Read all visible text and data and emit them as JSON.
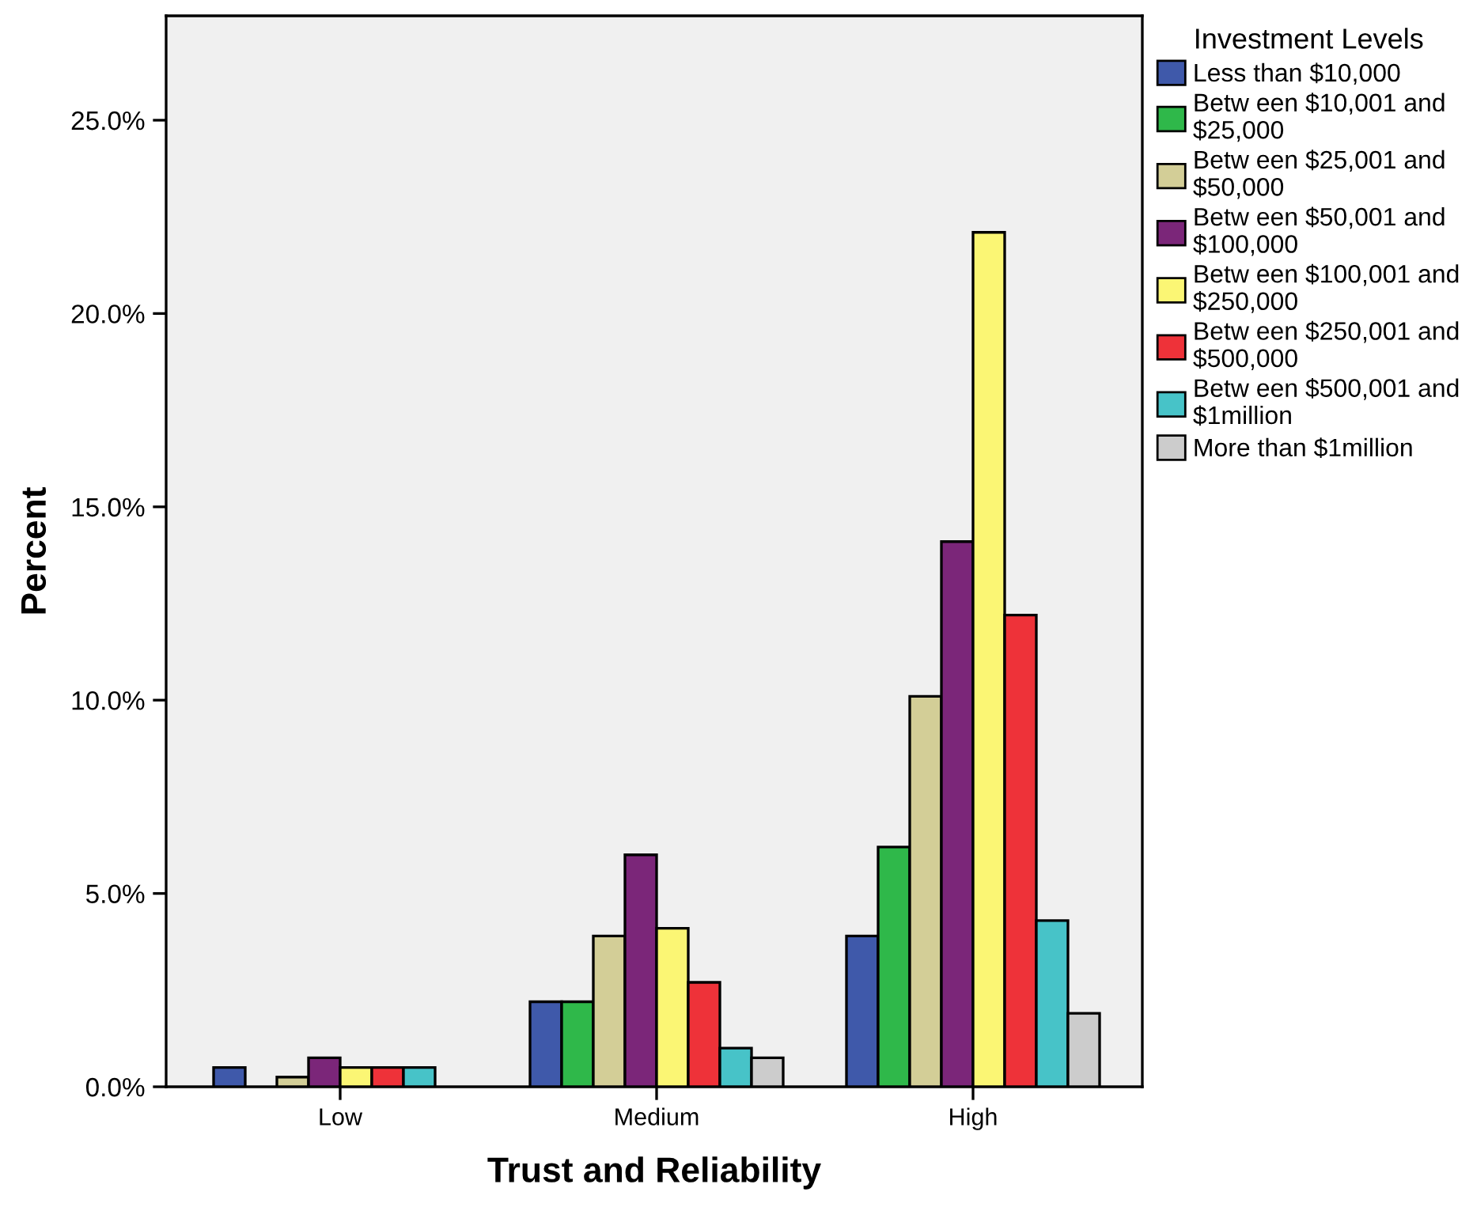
{
  "chart_data": {
    "type": "bar",
    "xlabel": "Trust and Reliability",
    "ylabel": "Percent",
    "legend_title": "Investment Levels",
    "categories": [
      "Low",
      "Medium",
      "High"
    ],
    "series": [
      {
        "name": "Less than $10,000",
        "color": "#3f59aa",
        "values": [
          0.5,
          2.2,
          3.9
        ]
      },
      {
        "name": "Betw een $10,001 and\n$25,000",
        "color": "#2fb84a",
        "values": [
          null,
          2.2,
          6.2
        ]
      },
      {
        "name": "Betw een $25,001 and\n$50,000",
        "color": "#d3ce97",
        "values": [
          0.25,
          3.9,
          10.1
        ]
      },
      {
        "name": "Betw een $50,001 and\n$100,000",
        "color": "#7b2679",
        "values": [
          0.75,
          6.0,
          14.1
        ]
      },
      {
        "name": "Betw een $100,001 and\n$250,000",
        "color": "#fbf674",
        "values": [
          0.5,
          4.1,
          22.1
        ]
      },
      {
        "name": "Betw een $250,001 and\n$500,000",
        "color": "#ee3239",
        "values": [
          0.5,
          2.7,
          12.2
        ]
      },
      {
        "name": "Betw een $500,001 and\n$1million",
        "color": "#47c3c8",
        "values": [
          0.5,
          1.0,
          4.3
        ]
      },
      {
        "name": "More than $1million",
        "color": "#cccccc",
        "values": [
          null,
          0.75,
          1.9
        ]
      }
    ],
    "ylim": [
      0,
      27.7
    ],
    "yticks": [
      {
        "value": 0,
        "label": "0.0%"
      },
      {
        "value": 5,
        "label": "5.0%"
      },
      {
        "value": 10,
        "label": "10.0%"
      },
      {
        "value": 15,
        "label": "15.0%"
      },
      {
        "value": 20,
        "label": "20.0%"
      },
      {
        "value": 25,
        "label": "25.0%"
      }
    ],
    "legend": "top right",
    "grid": false
  }
}
